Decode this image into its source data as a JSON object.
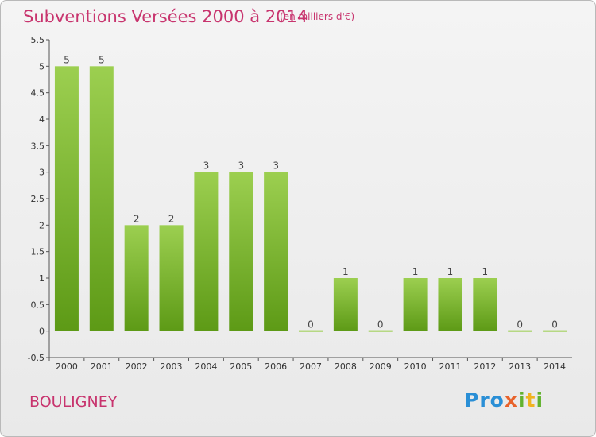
{
  "title": "Subventions Versées 2000 à 2014",
  "subtitle": "(en milliers d'€)",
  "commune": "BOULIGNEY",
  "logo": {
    "p1": "Pro",
    "p2": "x",
    "p3": "i",
    "p4": "t",
    "p5": "i"
  },
  "colors": {
    "bar_top": "#9ccf50",
    "bar_bottom": "#5d9a16",
    "title": "#c8346e"
  },
  "chart_data": {
    "type": "bar",
    "categories": [
      "2000",
      "2001",
      "2002",
      "2003",
      "2004",
      "2005",
      "2006",
      "2007",
      "2008",
      "2009",
      "2010",
      "2011",
      "2012",
      "2013",
      "2014"
    ],
    "values": [
      5,
      5,
      2,
      2,
      3,
      3,
      3,
      0,
      1,
      0,
      1,
      1,
      1,
      0,
      0
    ],
    "ylim": [
      -0.5,
      5.5
    ],
    "yticks": [
      "-0.5",
      "0",
      "0.5",
      "1",
      "1.5",
      "2",
      "2.5",
      "3",
      "3.5",
      "4",
      "4.5",
      "5",
      "5.5"
    ],
    "grid": false,
    "data_labels": true
  }
}
